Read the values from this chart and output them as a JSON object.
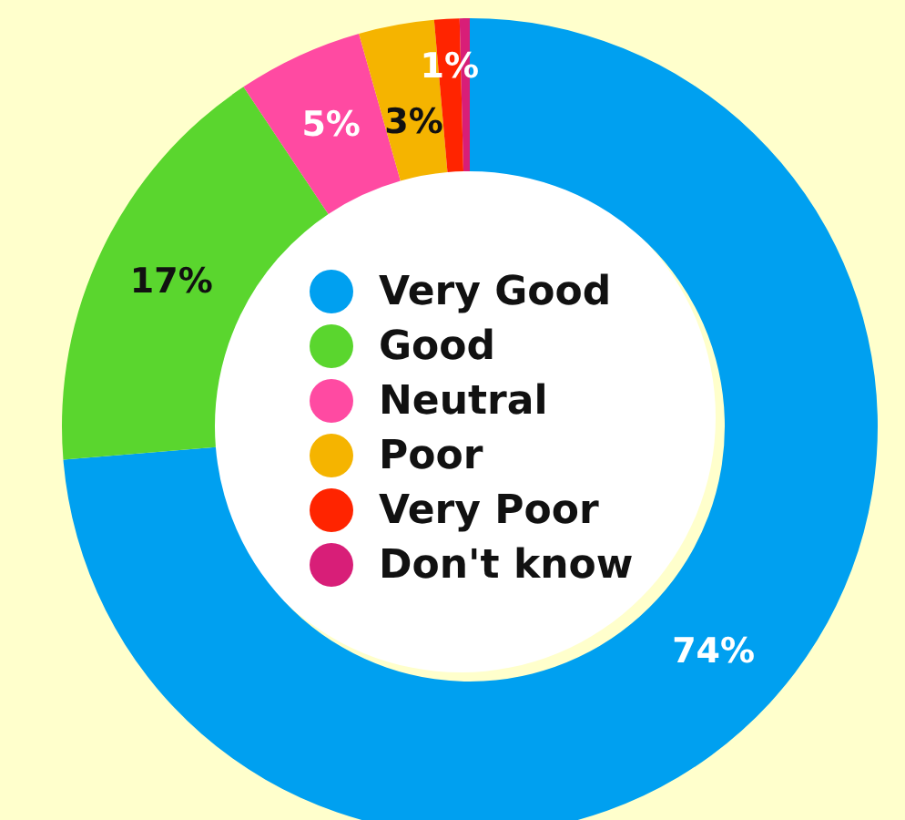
{
  "chart_data": {
    "type": "donut",
    "categories": [
      "Very Good",
      "Good",
      "Neutral",
      "Poor",
      "Very Poor",
      "Don't know"
    ],
    "values": [
      74,
      17,
      5,
      3,
      1,
      0.4
    ],
    "colors": [
      "#00a0f0",
      "#5ad62e",
      "#ff4aa2",
      "#f5b400",
      "#ff2400",
      "#d81e78"
    ],
    "value_labels": [
      "74%",
      "17%",
      "5%",
      "3%",
      "1%",
      null
    ],
    "legend": "center"
  }
}
